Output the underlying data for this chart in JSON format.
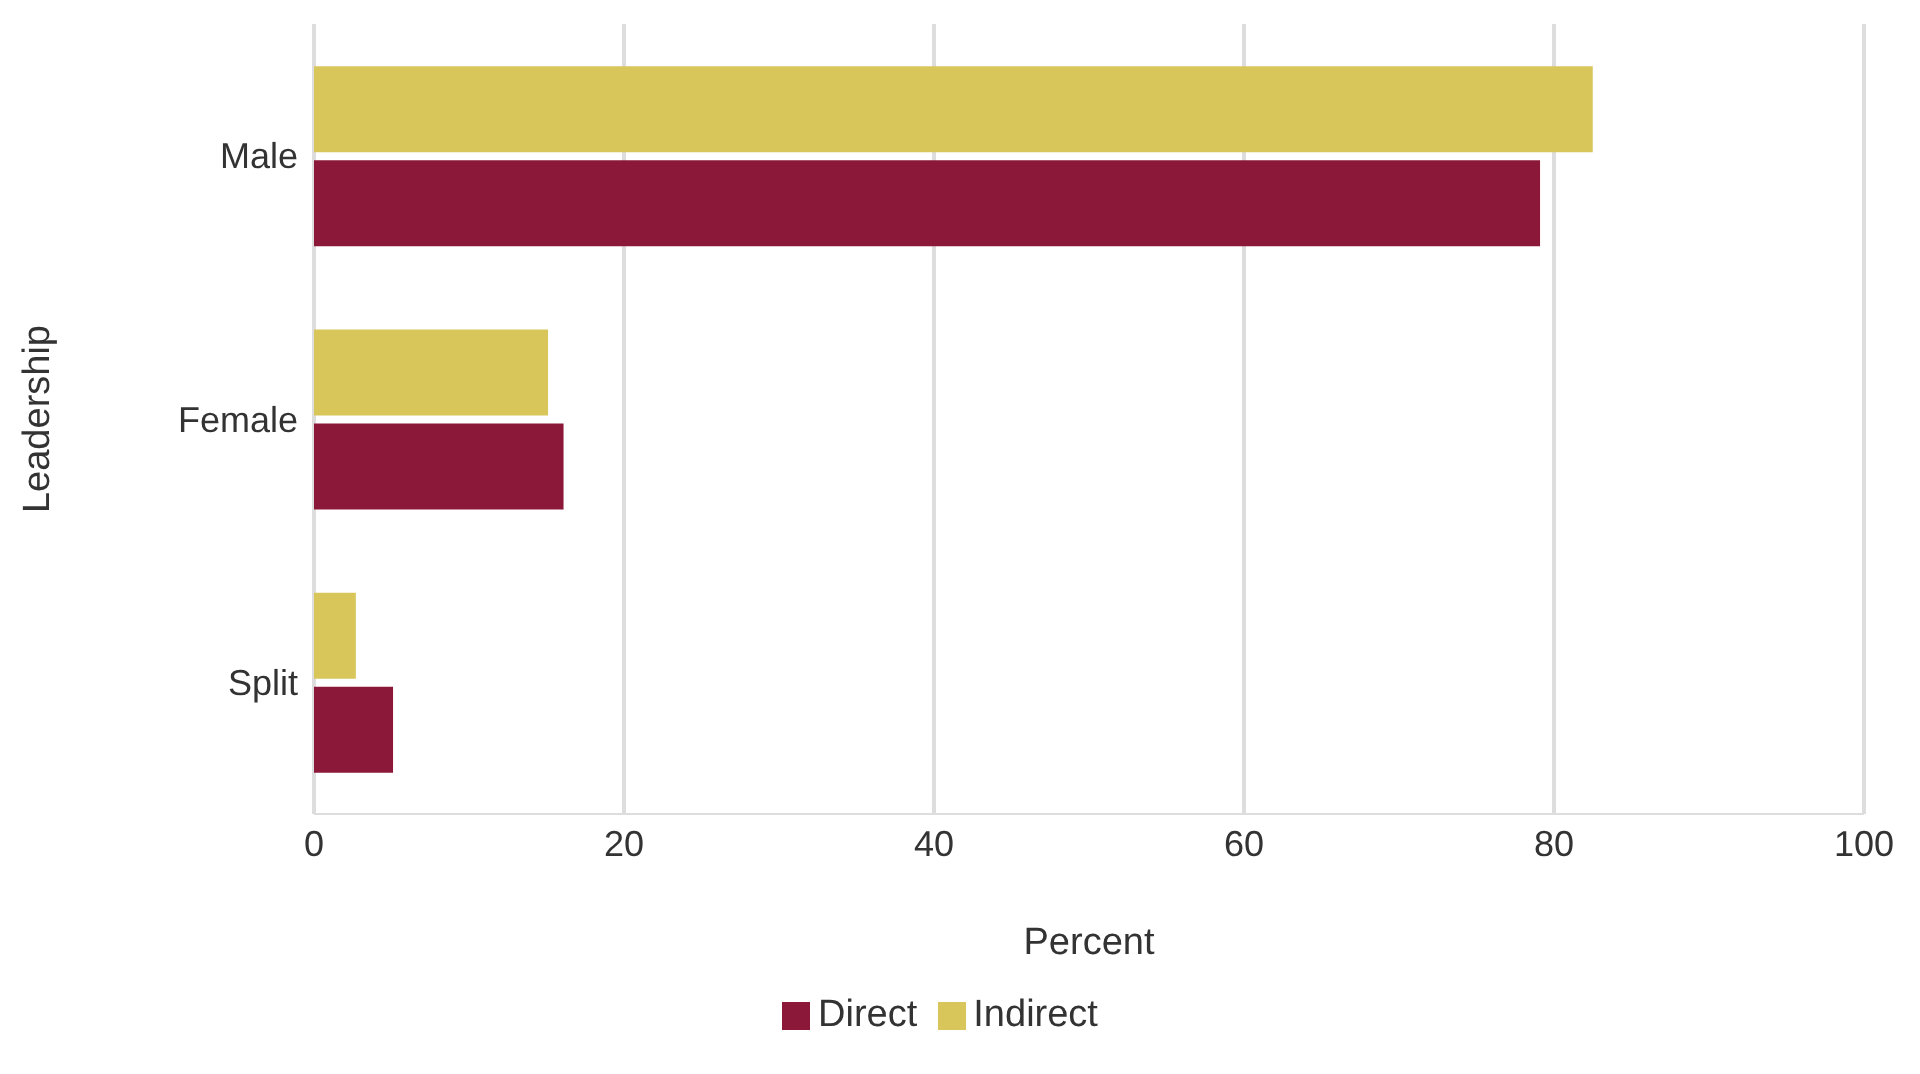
{
  "chart_data": {
    "type": "bar",
    "orientation": "horizontal",
    "xlabel": "Percent",
    "ylabel": "Leadership",
    "categories": [
      "Male",
      "Female",
      "Split"
    ],
    "series": [
      {
        "name": "Indirect",
        "color": "#d9c65b",
        "values": [
          82.5,
          15.1,
          2.7
        ]
      },
      {
        "name": "Direct",
        "color": "#8b1838",
        "values": [
          79.1,
          16.1,
          5.1
        ]
      }
    ],
    "xlim": [
      0,
      100
    ],
    "xticks": [
      0,
      20,
      40,
      60,
      80,
      100
    ],
    "grid": "x",
    "legend": "bottom"
  }
}
